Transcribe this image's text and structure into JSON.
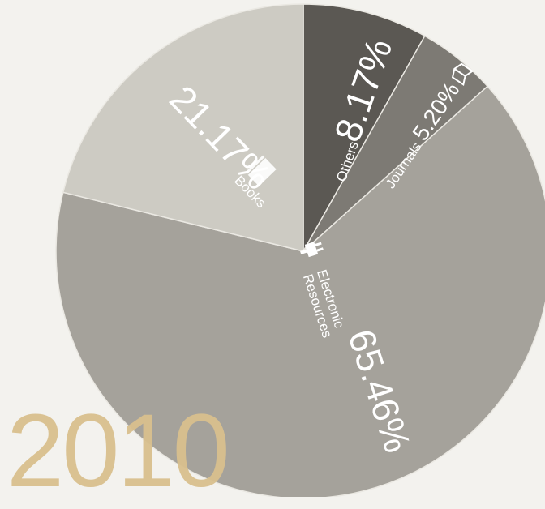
{
  "chart_data": {
    "type": "pie",
    "year": "2010",
    "slices": [
      {
        "name": "Others",
        "value": 8.17,
        "label": "8.17%",
        "color": "#5b5853",
        "icon": "none"
      },
      {
        "name": "Journals",
        "value": 5.2,
        "label": "5.20%",
        "color": "#7d7a74",
        "icon": "journal-icon"
      },
      {
        "name": "Electronic Resources",
        "name_line1": "Electronic",
        "name_line2": "Resources",
        "value": 65.46,
        "label": "65.46%",
        "color": "#a5a29b",
        "icon": "plug-icon"
      },
      {
        "name": "Books",
        "value": 21.17,
        "label": "21.17%",
        "color": "#cdcbc3",
        "icon": "book-icon"
      }
    ]
  }
}
